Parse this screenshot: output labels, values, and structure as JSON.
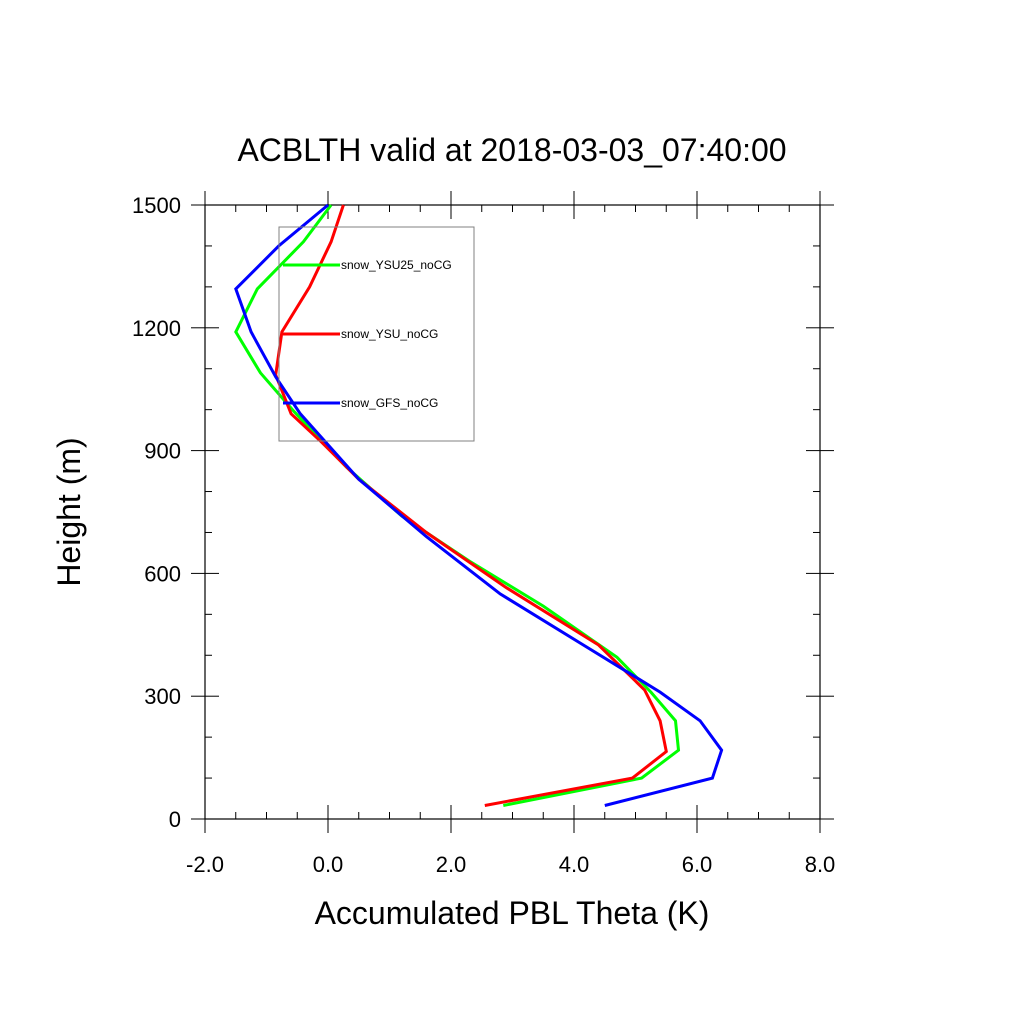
{
  "chart_data": {
    "type": "line",
    "title": "ACBLTH valid at 2018-03-03_07:40:00",
    "xlabel": "Accumulated PBL Theta (K)",
    "ylabel": "Height (m)",
    "xlim": [
      -2.0,
      8.0
    ],
    "ylim": [
      0,
      1500
    ],
    "xticks": [
      "-2.0",
      "0.0",
      "2.0",
      "4.0",
      "6.0",
      "8.0"
    ],
    "xtick_values": [
      -2,
      0,
      2,
      4,
      6,
      8
    ],
    "yticks": [
      "0",
      "300",
      "600",
      "900",
      "1200",
      "1500"
    ],
    "ytick_values": [
      0,
      300,
      600,
      900,
      1200,
      1500
    ],
    "legend_position": "top-left",
    "series": [
      {
        "name": "snow_YSU25_noCG",
        "color": "#00ff00",
        "points": [
          [
            2.85,
            33
          ],
          [
            5.1,
            100
          ],
          [
            5.7,
            168
          ],
          [
            5.65,
            240
          ],
          [
            5.25,
            310
          ],
          [
            4.7,
            395
          ],
          [
            3.5,
            520
          ],
          [
            2.3,
            630
          ],
          [
            1.2,
            740
          ],
          [
            0.3,
            860
          ],
          [
            -0.55,
            995
          ],
          [
            -1.1,
            1090
          ],
          [
            -1.5,
            1190
          ],
          [
            -1.15,
            1295
          ],
          [
            -0.4,
            1410
          ],
          [
            0.05,
            1500
          ]
        ]
      },
      {
        "name": "snow_YSU_noCG",
        "color": "#ff0000",
        "points": [
          [
            2.55,
            33
          ],
          [
            4.95,
            100
          ],
          [
            5.5,
            165
          ],
          [
            5.4,
            240
          ],
          [
            5.15,
            315
          ],
          [
            4.4,
            425
          ],
          [
            2.9,
            565
          ],
          [
            1.6,
            700
          ],
          [
            0.5,
            830
          ],
          [
            -0.1,
            920
          ],
          [
            -0.6,
            990
          ],
          [
            -0.85,
            1085
          ],
          [
            -0.75,
            1190
          ],
          [
            -0.3,
            1300
          ],
          [
            0.05,
            1410
          ],
          [
            0.25,
            1500
          ]
        ]
      },
      {
        "name": "snow_GFS_noCG",
        "color": "#0000ff",
        "points": [
          [
            4.5,
            33
          ],
          [
            6.25,
            100
          ],
          [
            6.4,
            168
          ],
          [
            6.05,
            240
          ],
          [
            5.4,
            310
          ],
          [
            4.1,
            430
          ],
          [
            2.8,
            550
          ],
          [
            1.6,
            690
          ],
          [
            0.5,
            830
          ],
          [
            -0.45,
            990
          ],
          [
            -0.85,
            1080
          ],
          [
            -1.25,
            1190
          ],
          [
            -1.5,
            1295
          ],
          [
            -0.8,
            1400
          ],
          [
            0.0,
            1500
          ]
        ]
      }
    ]
  }
}
